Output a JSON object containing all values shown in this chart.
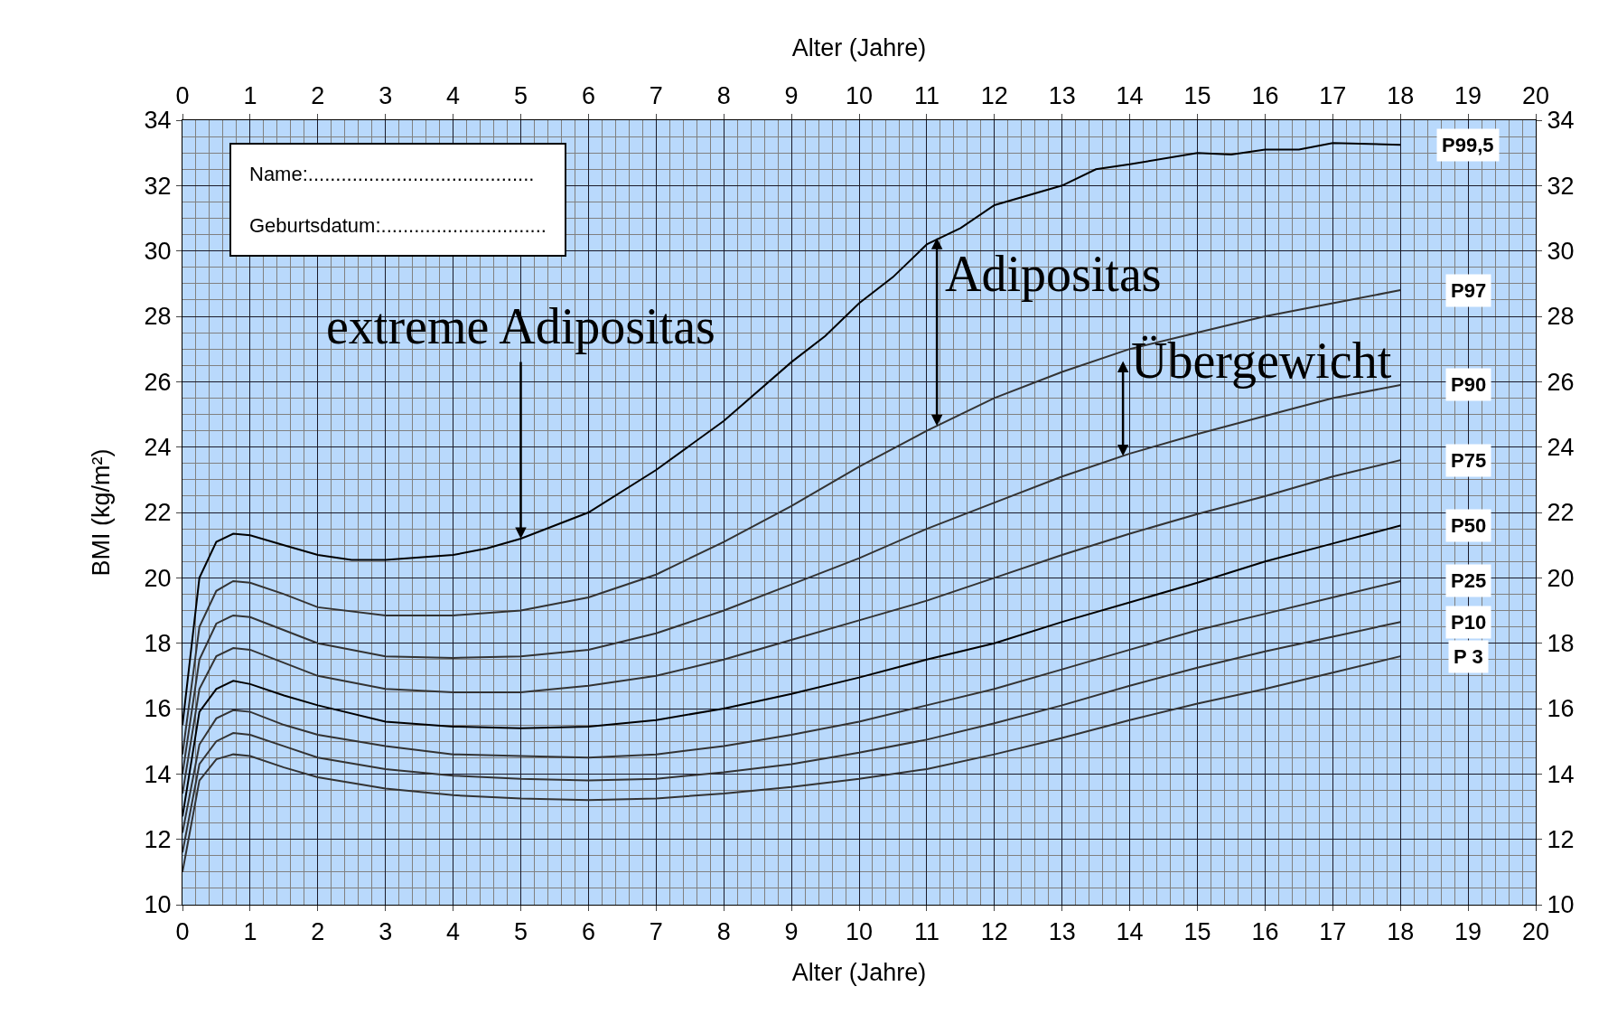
{
  "chart_data": {
    "type": "line",
    "xlabel": "Alter (Jahre)",
    "x2label": "Alter (Jahre)",
    "ylabel": "BMI (kg/m²)",
    "x": [
      0,
      0.25,
      0.5,
      0.75,
      1,
      1.5,
      2,
      3,
      4,
      5,
      6,
      7,
      8,
      9,
      10,
      11,
      12,
      13,
      14,
      15,
      16,
      17,
      18
    ],
    "series": [
      {
        "name": "P99,5",
        "color": "#000000",
        "x": [
          0,
          0.25,
          0.5,
          0.75,
          1,
          1.5,
          2,
          2.5,
          3,
          4,
          4.5,
          5,
          6,
          7,
          8,
          9,
          9.5,
          10,
          10.5,
          11,
          11.5,
          12,
          13,
          13.5,
          14,
          15,
          15.5,
          16,
          16.5,
          17,
          18
        ],
        "values": [
          15.5,
          20.0,
          21.1,
          21.35,
          21.3,
          21.0,
          20.7,
          20.55,
          20.55,
          20.7,
          20.9,
          21.2,
          22.0,
          23.3,
          24.8,
          26.6,
          27.4,
          28.4,
          29.2,
          30.2,
          30.7,
          31.4,
          32.0,
          32.5,
          32.65,
          33.0,
          32.95,
          33.1,
          33.1,
          33.3,
          33.25
        ]
      },
      {
        "name": "P97",
        "color": "#333333",
        "values": [
          14.6,
          18.5,
          19.6,
          19.9,
          19.85,
          19.5,
          19.1,
          18.85,
          18.85,
          19.0,
          19.4,
          20.1,
          21.1,
          22.2,
          23.4,
          24.5,
          25.5,
          26.3,
          27.0,
          27.5,
          28.0,
          28.4,
          28.8
        ]
      },
      {
        "name": "P90",
        "color": "#333333",
        "values": [
          14.0,
          17.5,
          18.6,
          18.85,
          18.8,
          18.4,
          18.0,
          17.6,
          17.55,
          17.6,
          17.8,
          18.3,
          19.0,
          19.8,
          20.6,
          21.5,
          22.3,
          23.1,
          23.8,
          24.4,
          24.95,
          25.5,
          25.9
        ]
      },
      {
        "name": "P75",
        "color": "#333333",
        "values": [
          13.4,
          16.6,
          17.6,
          17.85,
          17.8,
          17.4,
          17.0,
          16.6,
          16.5,
          16.5,
          16.7,
          17.0,
          17.5,
          18.1,
          18.7,
          19.3,
          20.0,
          20.7,
          21.35,
          21.95,
          22.5,
          23.1,
          23.6
        ]
      },
      {
        "name": "P50",
        "color": "#000000",
        "values": [
          12.7,
          15.9,
          16.6,
          16.85,
          16.75,
          16.4,
          16.1,
          15.6,
          15.45,
          15.4,
          15.45,
          15.65,
          16.0,
          16.45,
          16.95,
          17.5,
          18.0,
          18.65,
          19.25,
          19.85,
          20.5,
          21.05,
          21.6
        ]
      },
      {
        "name": "P25",
        "color": "#333333",
        "values": [
          12.2,
          14.9,
          15.7,
          15.95,
          15.9,
          15.5,
          15.2,
          14.85,
          14.6,
          14.55,
          14.5,
          14.6,
          14.85,
          15.2,
          15.6,
          16.1,
          16.6,
          17.2,
          17.8,
          18.4,
          18.9,
          19.4,
          19.9
        ]
      },
      {
        "name": "P10",
        "color": "#333333",
        "values": [
          11.6,
          14.3,
          15.0,
          15.25,
          15.2,
          14.85,
          14.5,
          14.15,
          13.95,
          13.85,
          13.8,
          13.85,
          14.05,
          14.3,
          14.65,
          15.05,
          15.55,
          16.1,
          16.7,
          17.25,
          17.75,
          18.2,
          18.65
        ]
      },
      {
        "name": "P 3",
        "color": "#333333",
        "values": [
          11.0,
          13.8,
          14.45,
          14.6,
          14.55,
          14.2,
          13.9,
          13.55,
          13.35,
          13.25,
          13.2,
          13.25,
          13.4,
          13.6,
          13.85,
          14.15,
          14.6,
          15.1,
          15.65,
          16.15,
          16.6,
          17.1,
          17.6
        ]
      }
    ],
    "xlim": [
      0,
      20
    ],
    "xticks": [
      0,
      1,
      2,
      3,
      4,
      5,
      6,
      7,
      8,
      9,
      10,
      11,
      12,
      13,
      14,
      15,
      16,
      17,
      18,
      19,
      20
    ],
    "x2lim": [
      0,
      20
    ],
    "x2ticks": [
      0,
      1,
      2,
      3,
      4,
      5,
      6,
      7,
      8,
      9,
      10,
      11,
      12,
      13,
      14,
      15,
      16,
      17,
      18,
      19,
      20
    ],
    "ylim": [
      10,
      34
    ],
    "yticks": [
      10,
      12,
      14,
      16,
      18,
      20,
      22,
      24,
      26,
      28,
      30,
      32,
      34
    ],
    "y2lim": [
      10,
      34
    ],
    "y2ticks": [
      10,
      12,
      14,
      16,
      18,
      20,
      22,
      24,
      26,
      28,
      30,
      32,
      34
    ],
    "grid": true,
    "legend": false,
    "annotations": [
      {
        "text": "extreme Adipositas",
        "x": 5,
        "y": 21.2
      },
      {
        "text": "Adipositas",
        "x": 11.15,
        "y": 24.65
      },
      {
        "text": "Übergewicht",
        "x": 13.9,
        "y": 23.73
      },
      "Name:.........................................",
      "Geburtsdatum:.............................."
    ]
  }
}
